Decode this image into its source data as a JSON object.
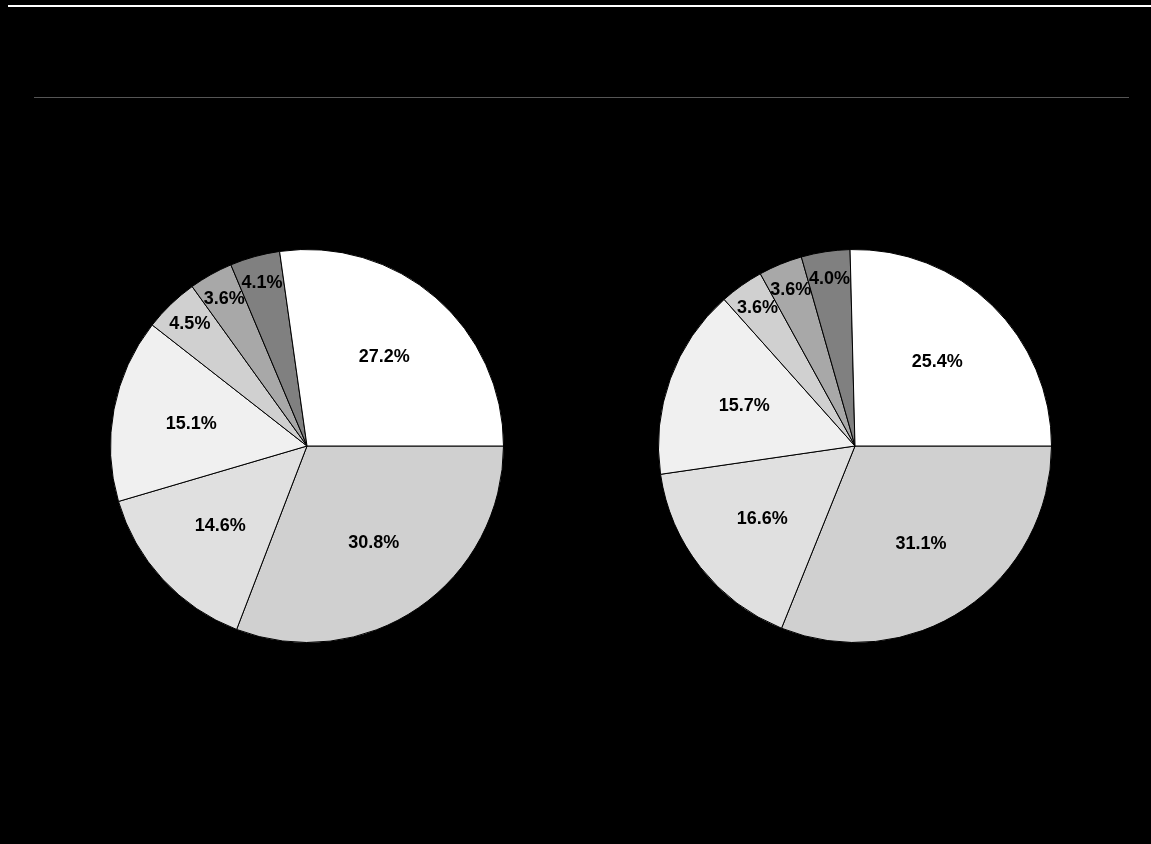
{
  "chart_data": [
    {
      "type": "pie",
      "categories": [
        null,
        null,
        null,
        null,
        null,
        null,
        null
      ],
      "values": [
        30.8,
        14.6,
        15.1,
        4.5,
        3.6,
        4.1,
        27.2
      ],
      "colors": [
        "#d0d0d0",
        "#e0e0e0",
        "#f0f0f0",
        "#d0d0d0",
        "#a8a8a8",
        "#808080",
        "#ffffff"
      ],
      "value_labels": [
        "30.8%",
        "14.6%",
        "15.1%",
        "4.5%",
        "3.6%",
        "4.1%",
        "27.2%"
      ],
      "legend": false
    },
    {
      "type": "pie",
      "categories": [
        null,
        null,
        null,
        null,
        null,
        null,
        null
      ],
      "values": [
        31.1,
        16.6,
        15.7,
        3.6,
        3.6,
        4.0,
        25.4
      ],
      "colors": [
        "#d0d0d0",
        "#e0e0e0",
        "#f0f0f0",
        "#d0d0d0",
        "#a8a8a8",
        "#808080",
        "#ffffff"
      ],
      "value_labels": [
        "31.1%",
        "16.6%",
        "15.7%",
        "3.6%",
        "3.6%",
        "4.0%",
        "25.4%"
      ],
      "legend": false
    }
  ]
}
